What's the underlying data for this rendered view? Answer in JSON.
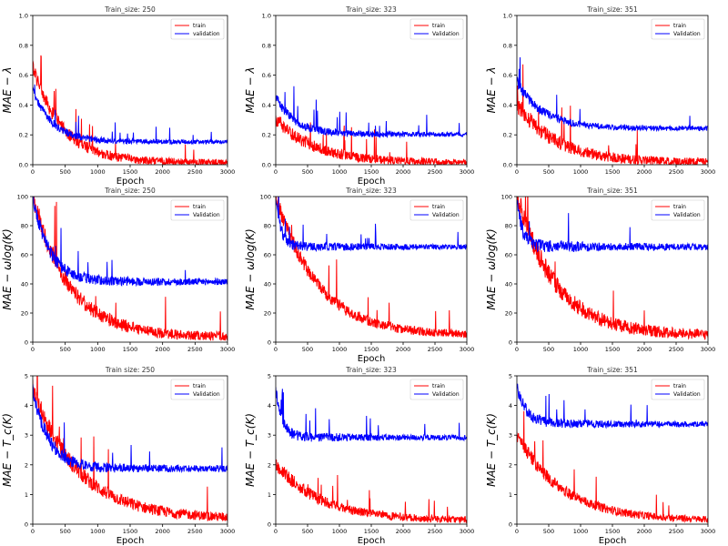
{
  "figure": {
    "description_labels": {
      "epoch": "Epoch"
    }
  },
  "chart_data": [
    {
      "type": "line",
      "title": "Train_size: 250",
      "xlabel": "Epoch",
      "ylabel": "MAE − λ",
      "xlim": [
        0,
        3000
      ],
      "ylim": [
        0,
        1.0
      ],
      "xticks": [
        0,
        500,
        1000,
        1500,
        2000,
        2500,
        3000
      ],
      "yticks": [
        0.0,
        0.2,
        0.4,
        0.6,
        0.8,
        1.0
      ],
      "yticklabels": [
        "0.0",
        "0.2",
        "0.4",
        "0.6",
        "0.8",
        "1.0"
      ],
      "legend": [
        "train",
        "validation"
      ],
      "series": [
        {
          "name": "train",
          "color": "#ff0000",
          "start": 0.65,
          "end": 0.01,
          "decay": 450,
          "noise": 0.05,
          "spikes": 0.02
        },
        {
          "name": "validation",
          "color": "#0000ff",
          "start": 0.5,
          "end": 0.15,
          "decay": 300,
          "noise": 0.03,
          "spikes": 0.04
        }
      ]
    },
    {
      "type": "line",
      "title": "Train_size: 323",
      "xlabel": "Epoch",
      "ylabel": "MAE − λ",
      "xlim": [
        0,
        3000
      ],
      "ylim": [
        0,
        1.0
      ],
      "xticks": [
        0,
        500,
        1000,
        1500,
        2000,
        2500,
        3000
      ],
      "yticks": [
        0.0,
        0.2,
        0.4,
        0.6,
        0.8,
        1.0
      ],
      "yticklabels": [
        "0.0",
        "0.2",
        "0.4",
        "0.6",
        "0.8",
        "1.0"
      ],
      "legend": [
        "train",
        "Validation"
      ],
      "series": [
        {
          "name": "train",
          "color": "#ff0000",
          "start": 0.3,
          "end": 0.01,
          "decay": 600,
          "noise": 0.05,
          "spikes": 0.03
        },
        {
          "name": "Validation",
          "color": "#0000ff",
          "start": 0.45,
          "end": 0.2,
          "decay": 300,
          "noise": 0.035,
          "spikes": 0.03
        }
      ]
    },
    {
      "type": "line",
      "title": "Train_size: 351",
      "xlabel": "",
      "ylabel": "MAE − λ",
      "xlim": [
        0,
        3000
      ],
      "ylim": [
        0,
        1.0
      ],
      "xticks": [
        0,
        500,
        1000,
        1500,
        2000,
        2500,
        3000
      ],
      "yticks": [
        0.0,
        0.2,
        0.4,
        0.6,
        0.8,
        1.0
      ],
      "yticklabels": [
        "0.0",
        "0.2",
        "0.4",
        "0.6",
        "0.8",
        "1.0"
      ],
      "legend": [
        "train",
        "Validation"
      ],
      "series": [
        {
          "name": "train",
          "color": "#ff0000",
          "start": 0.4,
          "end": 0.01,
          "decay": 600,
          "noise": 0.06,
          "spikes": 0.03
        },
        {
          "name": "Validation",
          "color": "#0000ff",
          "start": 0.55,
          "end": 0.24,
          "decay": 400,
          "noise": 0.035,
          "spikes": 0.02
        }
      ]
    },
    {
      "type": "line",
      "title": "Train_size: 250",
      "xlabel": "",
      "ylabel": "MAE − ωlog(K)",
      "xlim": [
        0,
        3000
      ],
      "ylim": [
        0,
        100
      ],
      "xticks": [
        0,
        500,
        1000,
        1500,
        2000,
        2500,
        3000
      ],
      "yticks": [
        0,
        20,
        40,
        60,
        80,
        100
      ],
      "yticklabels": [
        "0",
        "20",
        "40",
        "60",
        "80",
        "100"
      ],
      "legend": [
        "train",
        "Validation"
      ],
      "series": [
        {
          "name": "train",
          "color": "#ff0000",
          "start": 100,
          "end": 3,
          "decay": 550,
          "noise": 7,
          "spikes": 0.03
        },
        {
          "name": "Validation",
          "color": "#0000ff",
          "start": 100,
          "end": 41,
          "decay": 250,
          "noise": 5,
          "spikes": 0.03
        }
      ]
    },
    {
      "type": "line",
      "title": "Train_size: 323",
      "xlabel": "Epoch",
      "ylabel": "MAE − ωlog(K)",
      "xlim": [
        0,
        3000
      ],
      "ylim": [
        0,
        100
      ],
      "xticks": [
        0,
        500,
        1000,
        1500,
        2000,
        2500,
        3000
      ],
      "yticks": [
        0,
        20,
        40,
        60,
        80,
        100
      ],
      "yticklabels": [
        "0",
        "20",
        "40",
        "60",
        "80",
        "100"
      ],
      "legend": [
        "train",
        "Validation"
      ],
      "series": [
        {
          "name": "train",
          "color": "#ff0000",
          "start": 100,
          "end": 4,
          "decay": 650,
          "noise": 6,
          "spikes": 0.02
        },
        {
          "name": "Validation",
          "color": "#0000ff",
          "start": 100,
          "end": 65,
          "decay": 80,
          "noise": 4,
          "spikes": 0.02
        }
      ]
    },
    {
      "type": "line",
      "title": "Train_size: 351",
      "xlabel": "",
      "ylabel": "MAE − ωlog(K)",
      "xlim": [
        0,
        3000
      ],
      "ylim": [
        0,
        100
      ],
      "xticks": [
        0,
        500,
        1000,
        1500,
        2000,
        2500,
        3000
      ],
      "yticks": [
        0,
        20,
        40,
        60,
        80,
        100
      ],
      "yticklabels": [
        "0",
        "20",
        "40",
        "60",
        "80",
        "100"
      ],
      "legend": [
        "train",
        "Validation"
      ],
      "series": [
        {
          "name": "train",
          "color": "#ff0000",
          "start": 100,
          "end": 4,
          "decay": 600,
          "noise": 8,
          "spikes": 0.02
        },
        {
          "name": "Validation",
          "color": "#0000ff",
          "start": 100,
          "end": 65,
          "decay": 80,
          "noise": 5,
          "spikes": 0.02
        }
      ]
    },
    {
      "type": "line",
      "title": "Train size: 250",
      "xlabel": "Epoch",
      "ylabel": "MAE − T_c(K)",
      "xlim": [
        0,
        3000
      ],
      "ylim": [
        0,
        5
      ],
      "xticks": [
        0,
        500,
        1000,
        1500,
        2000,
        2500,
        3000
      ],
      "yticks": [
        0,
        1,
        2,
        3,
        4,
        5
      ],
      "yticklabels": [
        "0",
        "1",
        "2",
        "3",
        "4",
        "5"
      ],
      "legend": [
        "train",
        "Validation"
      ],
      "series": [
        {
          "name": "train",
          "color": "#ff0000",
          "start": 4.5,
          "end": 0.15,
          "decay": 700,
          "noise": 0.35,
          "spikes": 0.02
        },
        {
          "name": "Validation",
          "color": "#0000ff",
          "start": 4.5,
          "end": 1.85,
          "decay": 250,
          "noise": 0.25,
          "spikes": 0.02
        }
      ]
    },
    {
      "type": "line",
      "title": "Train_size: 323",
      "xlabel": "Epoch",
      "ylabel": "MAE − T_c(K)",
      "xlim": [
        0,
        3000
      ],
      "ylim": [
        0,
        5
      ],
      "xticks": [
        0,
        500,
        1000,
        1500,
        2000,
        2500,
        3000
      ],
      "yticks": [
        0,
        1,
        2,
        3,
        4,
        5
      ],
      "yticklabels": [
        "0",
        "1",
        "2",
        "3",
        "4",
        "5"
      ],
      "legend": [
        "train",
        "Validation"
      ],
      "series": [
        {
          "name": "train",
          "color": "#ff0000",
          "start": 2.0,
          "end": 0.1,
          "decay": 700,
          "noise": 0.25,
          "spikes": 0.04
        },
        {
          "name": "Validation",
          "color": "#0000ff",
          "start": 4.5,
          "end": 2.9,
          "decay": 100,
          "noise": 0.2,
          "spikes": 0.03
        }
      ]
    },
    {
      "type": "line",
      "title": "Train_size: 351",
      "xlabel": "Epoch",
      "ylabel": "MAE − T_c(K)",
      "xlim": [
        0,
        3000
      ],
      "ylim": [
        0,
        5
      ],
      "xticks": [
        0,
        500,
        1000,
        1500,
        2000,
        2500,
        3000
      ],
      "yticks": [
        0,
        1,
        2,
        3,
        4,
        5
      ],
      "yticklabels": [
        "0",
        "1",
        "2",
        "3",
        "4",
        "5"
      ],
      "legend": [
        "train",
        "Validation"
      ],
      "series": [
        {
          "name": "train",
          "color": "#ff0000",
          "start": 3.0,
          "end": 0.1,
          "decay": 700,
          "noise": 0.25,
          "spikes": 0.03
        },
        {
          "name": "Validation",
          "color": "#0000ff",
          "start": 4.6,
          "end": 3.35,
          "decay": 150,
          "noise": 0.2,
          "spikes": 0.03
        }
      ]
    }
  ]
}
